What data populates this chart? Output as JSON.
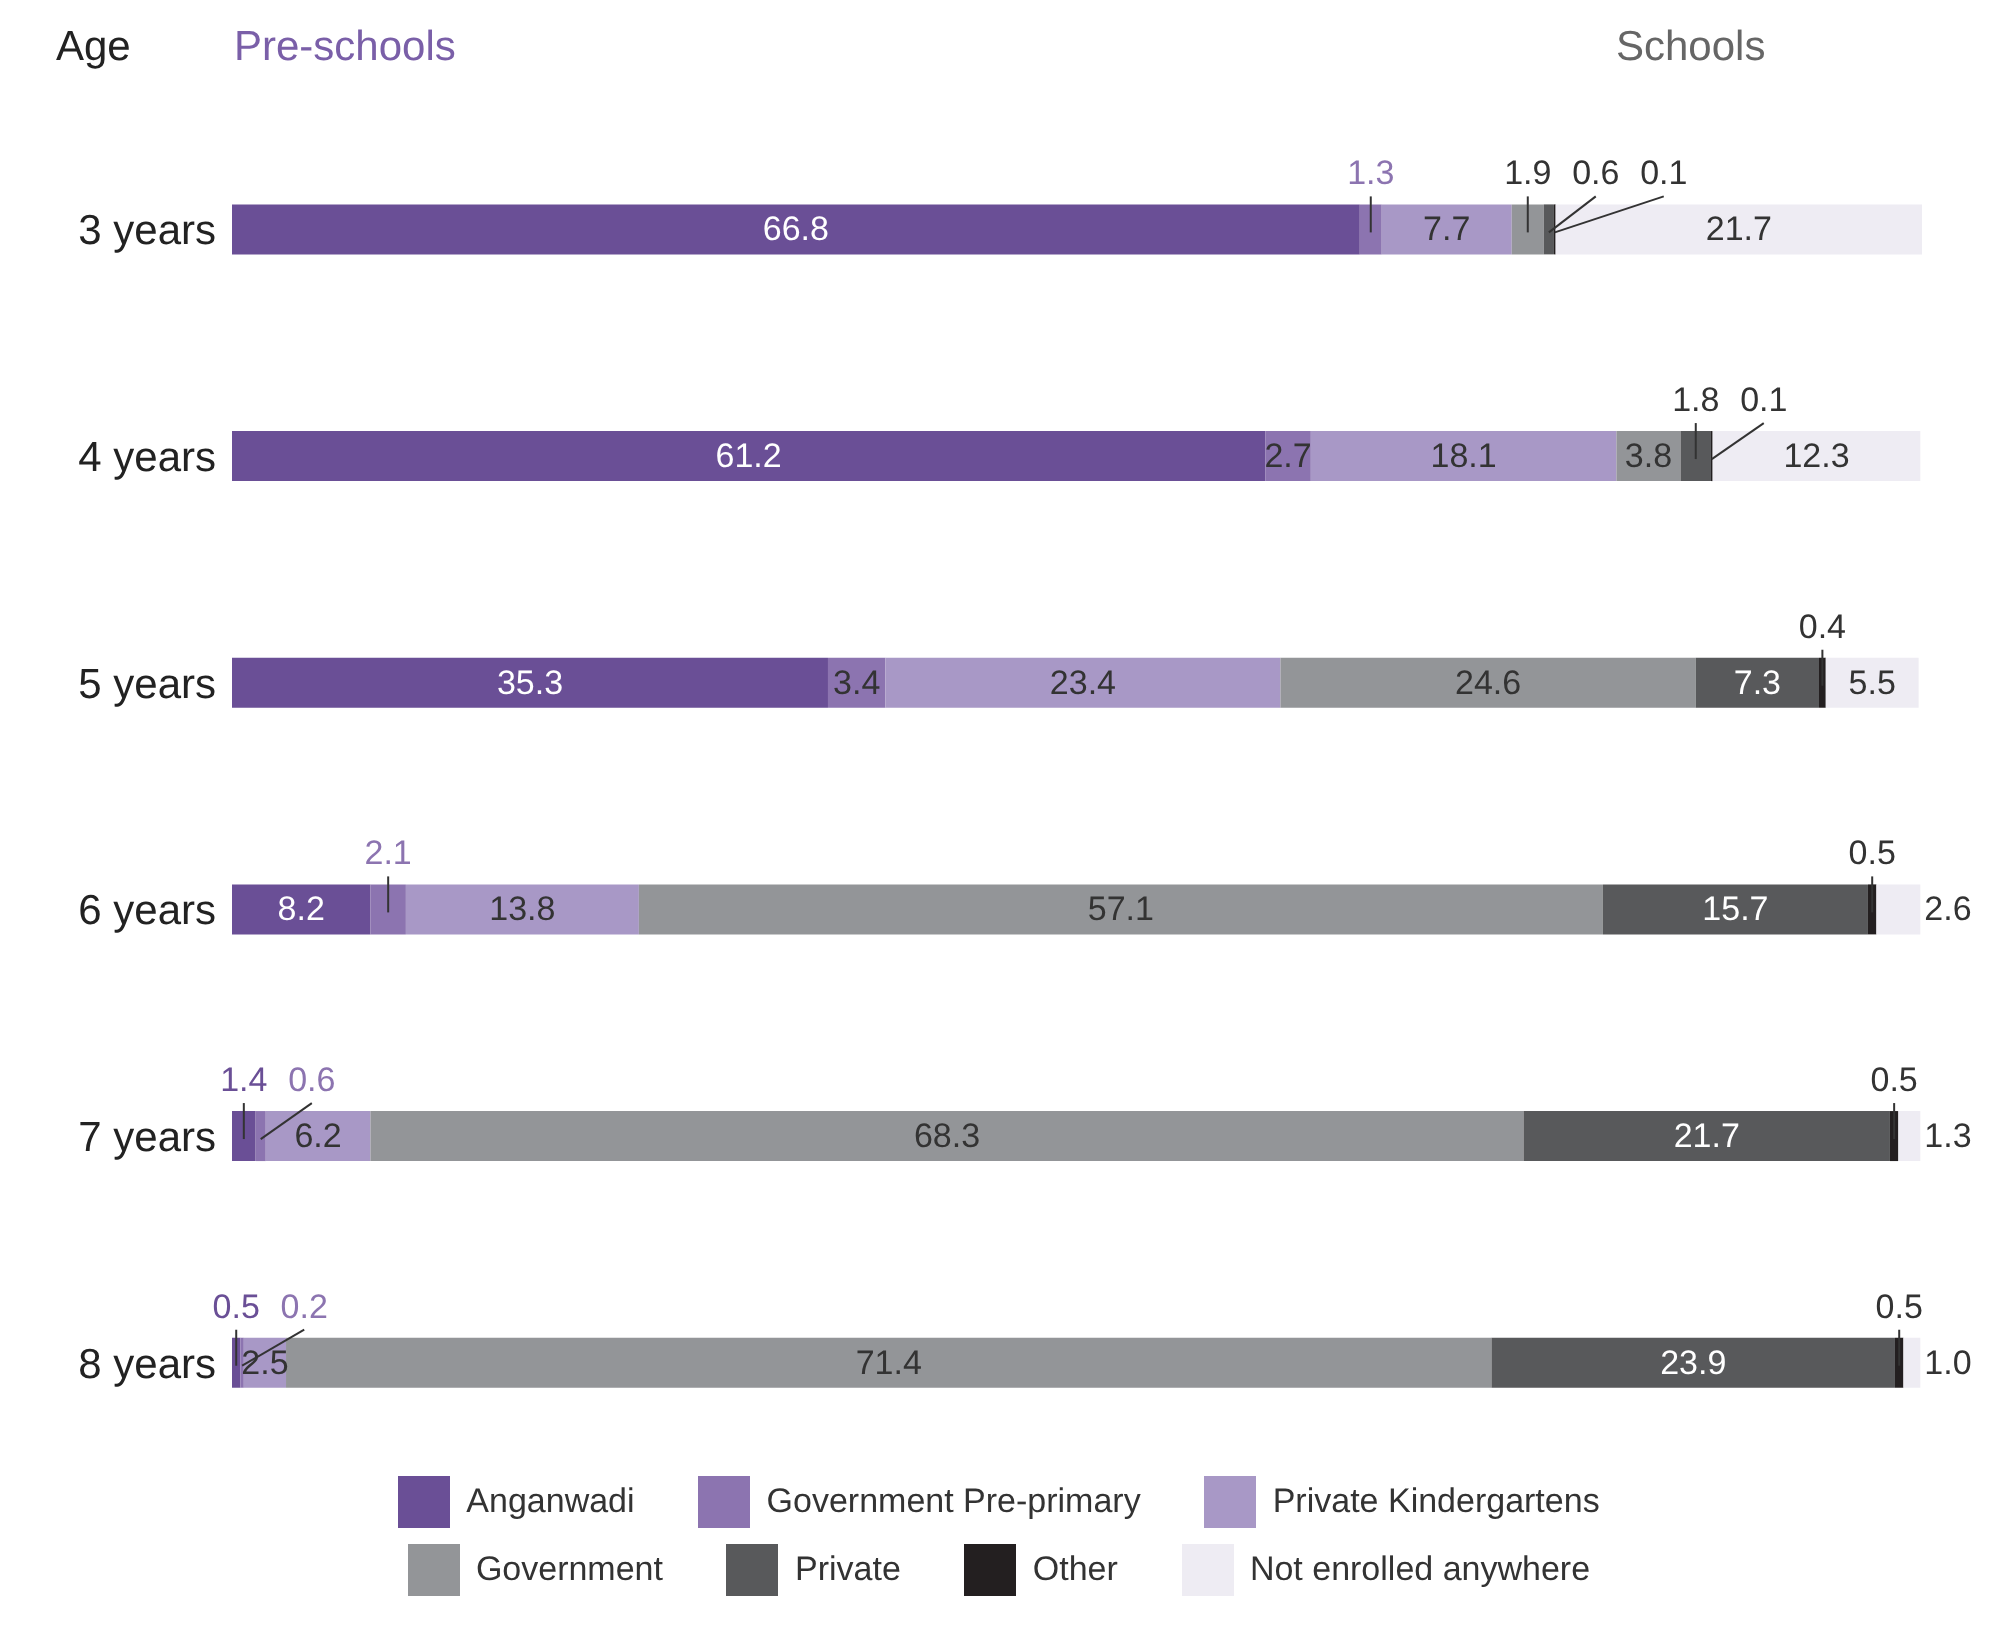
{
  "chart_data": {
    "type": "bar",
    "orientation": "horizontal",
    "stacked": true,
    "data_labels": true,
    "tick_labels": "y",
    "grid": false,
    "legend": "bottom",
    "annotations": [
      "Age",
      "Pre-schools",
      "Schools"
    ],
    "categories": [
      "3 years",
      "4 years",
      "5 years",
      "6 years",
      "7 years",
      "8 years"
    ],
    "series": [
      {
        "name": "Anganwadi",
        "color": "#6a4f96",
        "values": [
          66.8,
          61.2,
          35.3,
          8.2,
          1.4,
          0.5
        ]
      },
      {
        "name": "Government Pre-primary",
        "color": "#8c74b0",
        "values": [
          1.3,
          2.7,
          3.4,
          2.1,
          0.6,
          0.2
        ]
      },
      {
        "name": "Private Kindergartens",
        "color": "#a898c6",
        "values": [
          7.7,
          18.1,
          23.4,
          13.8,
          6.2,
          2.5
        ]
      },
      {
        "name": "Government",
        "color": "#939598",
        "values": [
          1.9,
          3.8,
          24.6,
          57.1,
          68.3,
          71.4
        ]
      },
      {
        "name": "Private",
        "color": "#58595b",
        "values": [
          0.6,
          1.8,
          7.3,
          15.7,
          21.7,
          23.9
        ]
      },
      {
        "name": "Other",
        "color": "#231f20",
        "values": [
          0.1,
          0.1,
          0.4,
          0.5,
          0.5,
          0.5
        ]
      },
      {
        "name": "Not enrolled anywhere",
        "color": "#eeecf3",
        "values": [
          21.7,
          12.3,
          5.5,
          2.6,
          1.3,
          1.0
        ],
        "value_labels": [
          "21.7",
          "12.3",
          "5.5",
          "2.6",
          "1.3",
          "1.0"
        ]
      }
    ]
  }
}
